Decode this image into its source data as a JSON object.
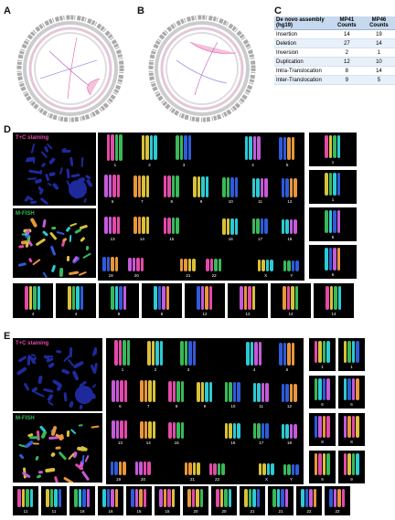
{
  "panels": {
    "a": "A",
    "b": "B",
    "c": "C",
    "d": "D",
    "e": "E"
  },
  "table": {
    "headers": [
      "De novo assembly (hg19)",
      "MP41 Counts",
      "MP46 Counts"
    ],
    "rows": [
      [
        "Insertion",
        "14",
        "19"
      ],
      [
        "Deletion",
        "27",
        "14"
      ],
      [
        "Inversion",
        "2",
        "1"
      ],
      [
        "Duplication",
        "12",
        "10"
      ],
      [
        "Intra-Translocation",
        "8",
        "14"
      ],
      [
        "Inter-Translocation",
        "9",
        "5"
      ]
    ]
  },
  "stain_d": {
    "top": "T+C staining",
    "bottom": "M-FISH"
  },
  "stain_e": {
    "top": "T+C staining",
    "bottom": "M-FISH"
  },
  "karyo_numbers": [
    "1",
    "2",
    "3",
    "4",
    "5",
    "6",
    "7",
    "8",
    "9",
    "10",
    "11",
    "12",
    "13",
    "14",
    "15",
    "16",
    "17",
    "18",
    "19",
    "20",
    "21",
    "22",
    "X",
    "Y"
  ],
  "d_side": [
    "1",
    "1",
    "6",
    "6"
  ],
  "d_bottom": [
    "4",
    "4",
    "8",
    "8",
    "12",
    "12",
    "14",
    "14"
  ],
  "e_side": [
    "1",
    "1",
    "6",
    "6",
    "8",
    "8",
    "9",
    "9"
  ],
  "e_bottom": [
    "11",
    "11",
    "16",
    "16",
    "15",
    "15",
    "20",
    "20",
    "21",
    "21",
    "22",
    "22"
  ],
  "colors": {
    "nucleus": "#1e2a9c",
    "fish_pink": "#e24aa8",
    "fish_yellow": "#d9c13a",
    "fish_green": "#39b85a",
    "fish_cyan": "#2ccad3",
    "fish_blue": "#2f5bd9"
  }
}
